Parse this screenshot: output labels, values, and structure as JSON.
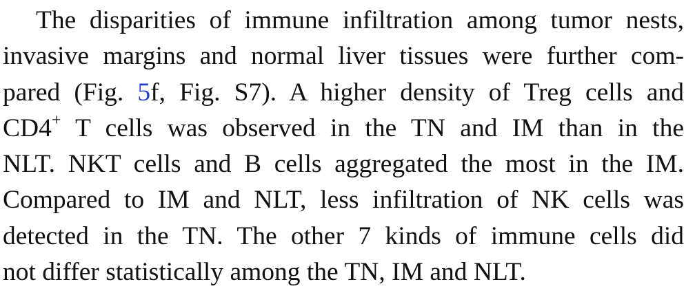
{
  "paragraph": {
    "line1": "The disparities of immune infiltration among tumor nests,",
    "line2": "invasive margins and normal liver tissues were further com-",
    "line3_before_link": "pared (Fig. ",
    "line3_link": "5",
    "line3_after_link": "f, Fig. S7). A higher density of Treg cells and",
    "line4_cd4": "CD4",
    "line4_sup": "+",
    "line4_rest": " T cells was observed in the TN and IM than in the",
    "line5": "NLT. NKT cells and B cells aggregated the most in the IM.",
    "line6": "Compared to IM and NLT, less infiltration of NK cells was",
    "line7": "detected in the TN. The other 7 kinds of immune cells did",
    "line8": "not differ statistically among the TN, IM and NLT."
  },
  "colors": {
    "text": "#111111",
    "link": "#1f3fc7"
  }
}
